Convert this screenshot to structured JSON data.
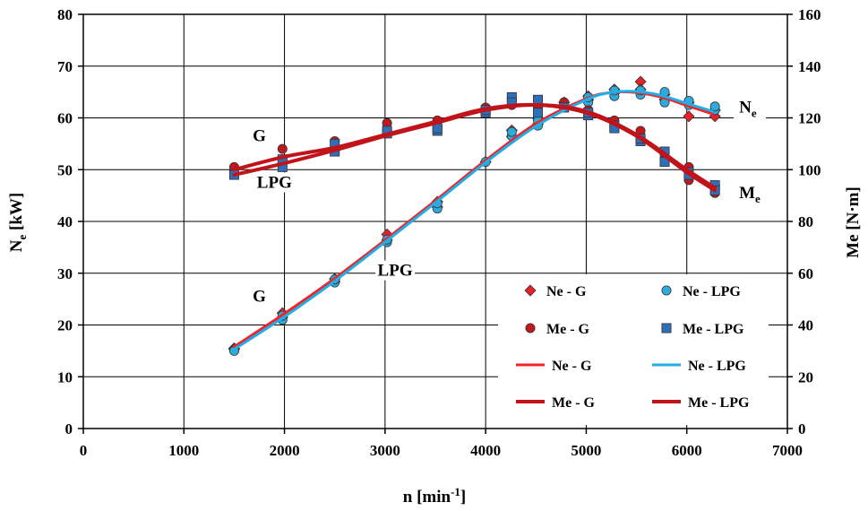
{
  "chart_data": {
    "type": "line",
    "x_axis": {
      "label": "n [min",
      "label_sup": "-1",
      "label_end": "]",
      "range": [
        0,
        7000
      ],
      "ticks": [
        0,
        1000,
        2000,
        3000,
        4000,
        5000,
        6000,
        7000
      ]
    },
    "y_left": {
      "label_main": "N",
      "label_sub": "e",
      "label_rest": " [kW]",
      "range": [
        0,
        80
      ],
      "ticks": [
        0,
        10,
        20,
        30,
        40,
        50,
        60,
        70,
        80
      ]
    },
    "y_right": {
      "label": "Me [N·m]",
      "range": [
        0,
        160
      ],
      "ticks": [
        0,
        20,
        40,
        60,
        80,
        100,
        120,
        140,
        160
      ]
    },
    "grid": true,
    "annotations": [
      {
        "text": "G",
        "x": 1750,
        "y": 55.5
      },
      {
        "text": "LPG",
        "x": 1900,
        "y": 46.5
      },
      {
        "text": "G",
        "x": 1750,
        "y": 24.5
      },
      {
        "text": "LPG",
        "x": 3100,
        "y": 29.5
      }
    ],
    "curve_labels": [
      {
        "main": "N",
        "sub": "e",
        "x": 6520,
        "y": 61
      },
      {
        "main": "M",
        "sub": "e",
        "x": 6520,
        "y": 44.5
      }
    ],
    "series": [
      {
        "name": "Ne - G",
        "kind": "points",
        "marker": "diamond",
        "axis": "left",
        "color": "#e8202a",
        "x": [
          1500,
          1500,
          1980,
          1980,
          2500,
          2500,
          3020,
          3020,
          3520,
          3520,
          4000,
          4260,
          4260,
          4520,
          4520,
          4780,
          5020,
          5020,
          5280,
          5280,
          5540,
          5540,
          5780,
          5780,
          6020,
          6020,
          6280,
          6280
        ],
        "y": [
          15.5,
          15.3,
          22.3,
          21.5,
          28.9,
          28.4,
          37.5,
          36.4,
          43.8,
          42.8,
          51.5,
          57.6,
          56.4,
          59.9,
          58.8,
          63.0,
          64.2,
          63.5,
          65.5,
          64.8,
          67.0,
          65.5,
          64.5,
          63.5,
          63.0,
          60.3,
          61.5,
          60.3
        ]
      },
      {
        "name": "Ne - LPG",
        "kind": "points",
        "marker": "circle",
        "axis": "left",
        "color": "#2eaadc",
        "x": [
          1500,
          1980,
          1980,
          2500,
          2500,
          3020,
          3020,
          3520,
          3520,
          4000,
          4260,
          4260,
          4520,
          4520,
          4780,
          5020,
          5020,
          5280,
          5280,
          5540,
          5540,
          5780,
          5780,
          6020,
          6020,
          6280,
          6280
        ],
        "y": [
          15.0,
          21.0,
          21.8,
          28.2,
          28.8,
          36.0,
          36.5,
          42.5,
          43.5,
          51.5,
          56.5,
          57.3,
          58.5,
          59.5,
          62.0,
          63.0,
          64.0,
          64.2,
          65.3,
          64.5,
          65.3,
          63.0,
          65.0,
          62.5,
          63.3,
          61.5,
          62.2
        ]
      },
      {
        "name": "Me - G",
        "kind": "points",
        "marker": "circle",
        "axis": "right",
        "color": "#c0181e",
        "x": [
          1500,
          1500,
          1980,
          1980,
          2500,
          2500,
          3020,
          3020,
          3520,
          3520,
          4000,
          4000,
          4260,
          4520,
          4780,
          5020,
          5020,
          5280,
          5280,
          5540,
          5540,
          5780,
          5780,
          6020,
          6020,
          6280,
          6280
        ],
        "y": [
          101,
          98,
          108,
          104,
          111,
          107,
          118,
          114,
          119,
          117,
          124,
          122,
          125,
          124,
          126,
          123,
          121,
          119,
          117,
          115,
          112,
          106,
          104,
          101,
          96,
          94,
          91
        ]
      },
      {
        "name": "Me - LPG",
        "kind": "points",
        "marker": "square",
        "axis": "right",
        "color": "#2f6fb8",
        "x": [
          1500,
          1980,
          1980,
          2500,
          2500,
          3020,
          3020,
          3520,
          3520,
          4000,
          4000,
          4260,
          4260,
          4520,
          4520,
          4780,
          5020,
          5020,
          5280,
          5280,
          5540,
          5540,
          5780,
          5780,
          6020,
          6020,
          6280,
          6280
        ],
        "y": [
          98,
          101,
          104,
          107,
          110,
          114,
          115,
          115,
          116,
          122,
          123,
          128,
          126,
          127,
          122,
          124,
          121,
          122,
          117,
          116,
          111,
          112,
          107,
          103,
          99,
          98,
          94,
          92
        ]
      },
      {
        "name": "Ne - G",
        "kind": "line",
        "axis": "left",
        "color": "#f0232a",
        "width": 3,
        "x": [
          1500,
          2000,
          2500,
          3000,
          3500,
          4000,
          4500,
          5000,
          5250,
          5500,
          5750,
          6000,
          6250
        ],
        "y": [
          15.8,
          22.2,
          29.0,
          36.4,
          44.0,
          51.8,
          58.9,
          63.7,
          64.9,
          64.9,
          64.0,
          62.4,
          60.8
        ]
      },
      {
        "name": "Ne - LPG",
        "kind": "line",
        "axis": "left",
        "color": "#22aee5",
        "width": 3,
        "x": [
          1500,
          2000,
          2500,
          3000,
          3500,
          4000,
          4500,
          5000,
          5250,
          5500,
          5750,
          6000,
          6250
        ],
        "y": [
          15.3,
          21.6,
          28.5,
          36.0,
          43.6,
          51.4,
          58.4,
          63.5,
          64.9,
          65.1,
          64.3,
          62.8,
          61.3
        ]
      },
      {
        "name": "Me - G",
        "kind": "line",
        "axis": "right",
        "color": "#c0141a",
        "width": 4,
        "x": [
          1500,
          2000,
          2500,
          3000,
          3500,
          4000,
          4500,
          5000,
          5500,
          6000,
          6280
        ],
        "y": [
          100,
          105,
          108.5,
          113.5,
          118.5,
          123.5,
          125,
          122,
          113,
          99,
          92
        ]
      },
      {
        "name": "Me - LPG",
        "kind": "line",
        "axis": "right",
        "color": "#c0141a",
        "width": 4,
        "x": [
          1500,
          2000,
          2500,
          3000,
          3500,
          4000,
          4500,
          5000,
          5500,
          6000,
          6280
        ],
        "y": [
          98,
          102.5,
          107.5,
          113,
          118,
          123,
          125,
          122.5,
          113.5,
          100,
          93
        ]
      }
    ],
    "legend": {
      "placement": "bottom-right",
      "entries": [
        {
          "label": "Ne - G",
          "symbol": "diamond",
          "color": "#e8202a"
        },
        {
          "label": "Ne - LPG",
          "symbol": "circle",
          "color": "#2eaadc"
        },
        {
          "label": "Me - G",
          "symbol": "circle",
          "color": "#c0181e"
        },
        {
          "label": "Me - LPG",
          "symbol": "square",
          "color": "#2f6fb8"
        },
        {
          "label": "Ne - G",
          "symbol": "line",
          "color": "#f0232a"
        },
        {
          "label": "Ne - LPG",
          "symbol": "line",
          "color": "#22aee5"
        },
        {
          "label": "Me - G",
          "symbol": "thickline",
          "color": "#c0141a"
        },
        {
          "label": "Me - LPG",
          "symbol": "thickline",
          "color": "#c0141a"
        }
      ]
    }
  }
}
